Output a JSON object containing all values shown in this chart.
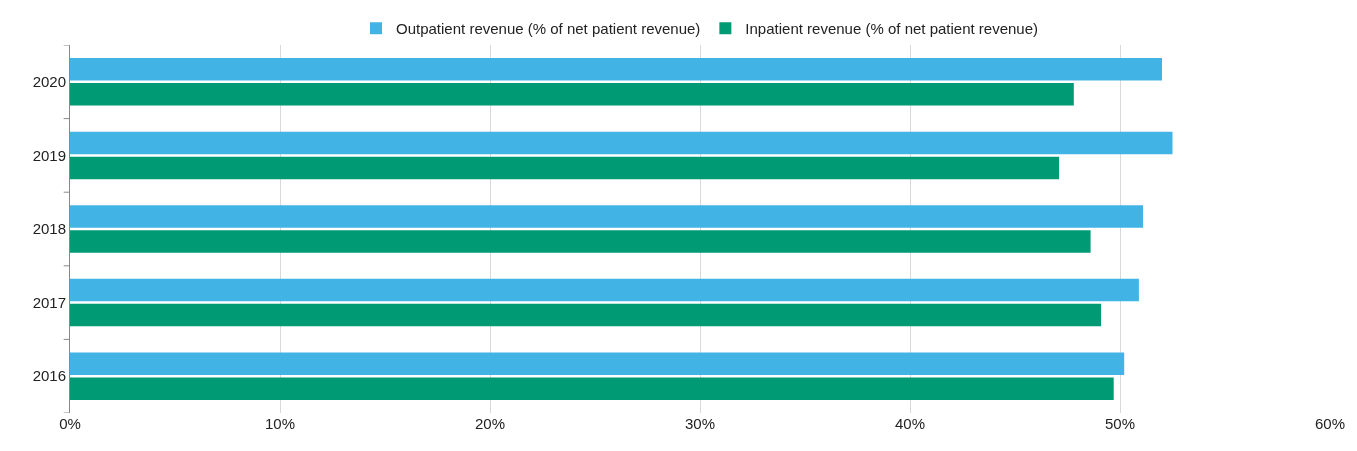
{
  "chart_data": {
    "type": "bar",
    "orientation": "horizontal",
    "categories": [
      "2020",
      "2019",
      "2018",
      "2017",
      "2016"
    ],
    "series": [
      {
        "name": "Outpatient revenue (% of net patient revenue)",
        "color": "#41b4e5",
        "values": [
          52.0,
          52.5,
          51.1,
          50.9,
          50.2
        ]
      },
      {
        "name": "Inpatient revenue (% of net patient revenue)",
        "color": "#009a74",
        "values": [
          47.8,
          47.1,
          48.6,
          49.1,
          49.7
        ]
      }
    ],
    "xlim": [
      0,
      60
    ],
    "xticks": [
      {
        "value": 0,
        "label": "0%"
      },
      {
        "value": 10,
        "label": "10%"
      },
      {
        "value": 20,
        "label": "20%"
      },
      {
        "value": 30,
        "label": "30%"
      },
      {
        "value": 40,
        "label": "40%"
      },
      {
        "value": 50,
        "label": "50%"
      },
      {
        "value": 60,
        "label": "60%"
      }
    ],
    "grid": "x",
    "legend": "top"
  }
}
